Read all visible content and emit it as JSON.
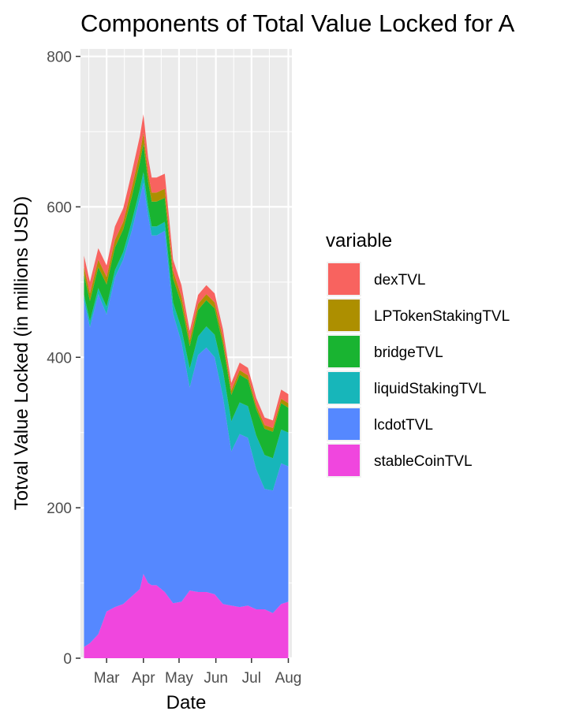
{
  "chart_data": {
    "type": "area",
    "stacked": true,
    "title": "Components of Total Value Locked for A",
    "xlabel": "Date",
    "ylabel": "Totval Value Locked (in millions USD)",
    "ylim": [
      0,
      810
    ],
    "y_ticks": [
      0,
      200,
      400,
      600,
      800
    ],
    "x_ticks": [
      "Mar",
      "Apr",
      "May",
      "Jun",
      "Jul",
      "Aug"
    ],
    "grid": true,
    "legend": {
      "title": "variable",
      "position": "right"
    },
    "dates": [
      "2022-02-10",
      "2022-02-15",
      "2022-02-22",
      "2022-03-01",
      "2022-03-08",
      "2022-03-15",
      "2022-03-22",
      "2022-03-29",
      "2022-04-01",
      "2022-04-05",
      "2022-04-08",
      "2022-04-12",
      "2022-04-19",
      "2022-04-26",
      "2022-05-03",
      "2022-05-10",
      "2022-05-17",
      "2022-05-24",
      "2022-05-31",
      "2022-06-07",
      "2022-06-14",
      "2022-06-21",
      "2022-06-28",
      "2022-07-05",
      "2022-07-12",
      "2022-07-19",
      "2022-07-26",
      "2022-08-01"
    ],
    "series": [
      {
        "name": "stableCoinTVL",
        "color": "#F046DE",
        "values": [
          15,
          20,
          32,
          62,
          68,
          72,
          82,
          92,
          112,
          100,
          97,
          97,
          88,
          73,
          75,
          90,
          88,
          88,
          85,
          72,
          70,
          68,
          70,
          65,
          65,
          60,
          72,
          75
        ]
      },
      {
        "name": "lcdotTVL",
        "color": "#5588FF",
        "values": [
          460,
          420,
          452,
          395,
          438,
          458,
          485,
          520,
          520,
          488,
          465,
          465,
          480,
          385,
          345,
          270,
          315,
          325,
          315,
          275,
          205,
          230,
          223,
          186,
          160,
          163,
          187,
          180
        ]
      },
      {
        "name": "liquidStakingTVL",
        "color": "#17B6BA",
        "values": [
          8,
          8,
          8,
          10,
          10,
          10,
          12,
          12,
          14,
          12,
          12,
          12,
          12,
          15,
          18,
          25,
          25,
          28,
          30,
          35,
          40,
          42,
          42,
          45,
          45,
          43,
          45,
          45
        ]
      },
      {
        "name": "bridgeTVL",
        "color": "#19B431",
        "values": [
          27,
          27,
          28,
          30,
          30,
          30,
          33,
          35,
          38,
          33,
          33,
          33,
          32,
          32,
          33,
          30,
          35,
          35,
          35,
          35,
          35,
          37,
          35,
          35,
          35,
          35,
          35,
          33
        ]
      },
      {
        "name": "LPTokenStakingTVL",
        "color": "#AD8F00",
        "values": [
          10,
          10,
          10,
          10,
          10,
          10,
          12,
          13,
          14,
          12,
          12,
          12,
          12,
          10,
          10,
          8,
          8,
          8,
          8,
          8,
          6,
          6,
          6,
          5,
          5,
          5,
          6,
          6
        ]
      },
      {
        "name": "dexTVL",
        "color": "#F8635F",
        "values": [
          15,
          15,
          15,
          15,
          18,
          18,
          20,
          22,
          25,
          20,
          20,
          20,
          20,
          15,
          15,
          12,
          12,
          12,
          12,
          12,
          10,
          10,
          10,
          10,
          10,
          10,
          12,
          12
        ]
      }
    ]
  }
}
